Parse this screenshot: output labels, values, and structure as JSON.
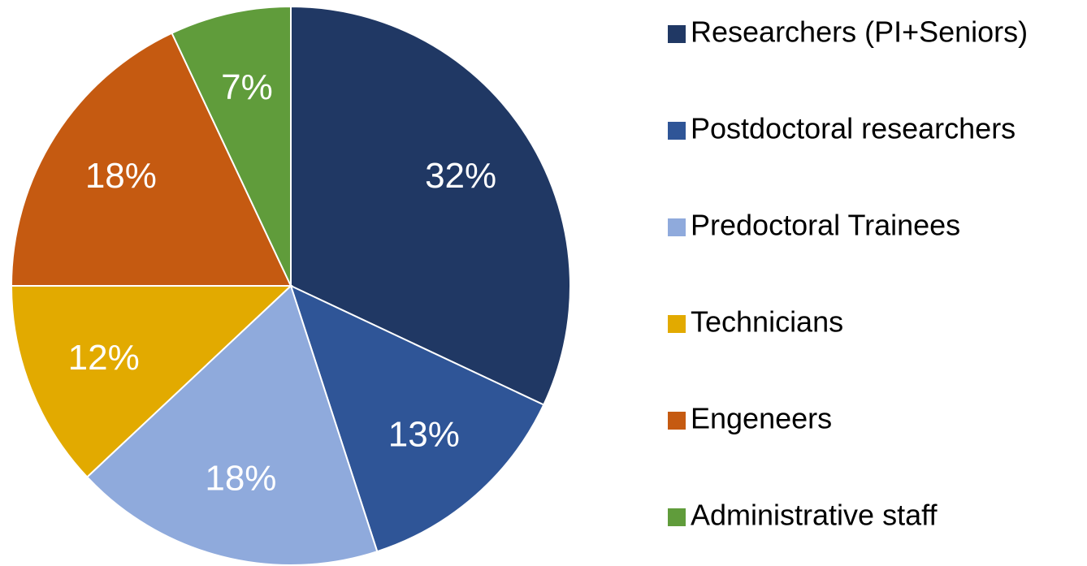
{
  "chart_data": {
    "type": "pie",
    "categories": [
      "Researchers (PI+Seniors)",
      "Postdoctoral researchers",
      "Predoctoral Trainees",
      "Technicians",
      "Engeneers",
      "Administrative staff"
    ],
    "values": [
      32,
      13,
      18,
      12,
      18,
      7
    ],
    "value_labels": [
      "32%",
      "13%",
      "18%",
      "12%",
      "18%",
      "7%"
    ],
    "colors": [
      "#203864",
      "#2f5597",
      "#8faadc",
      "#e2aa00",
      "#c55a11",
      "#609c3b"
    ],
    "legend": "right"
  }
}
